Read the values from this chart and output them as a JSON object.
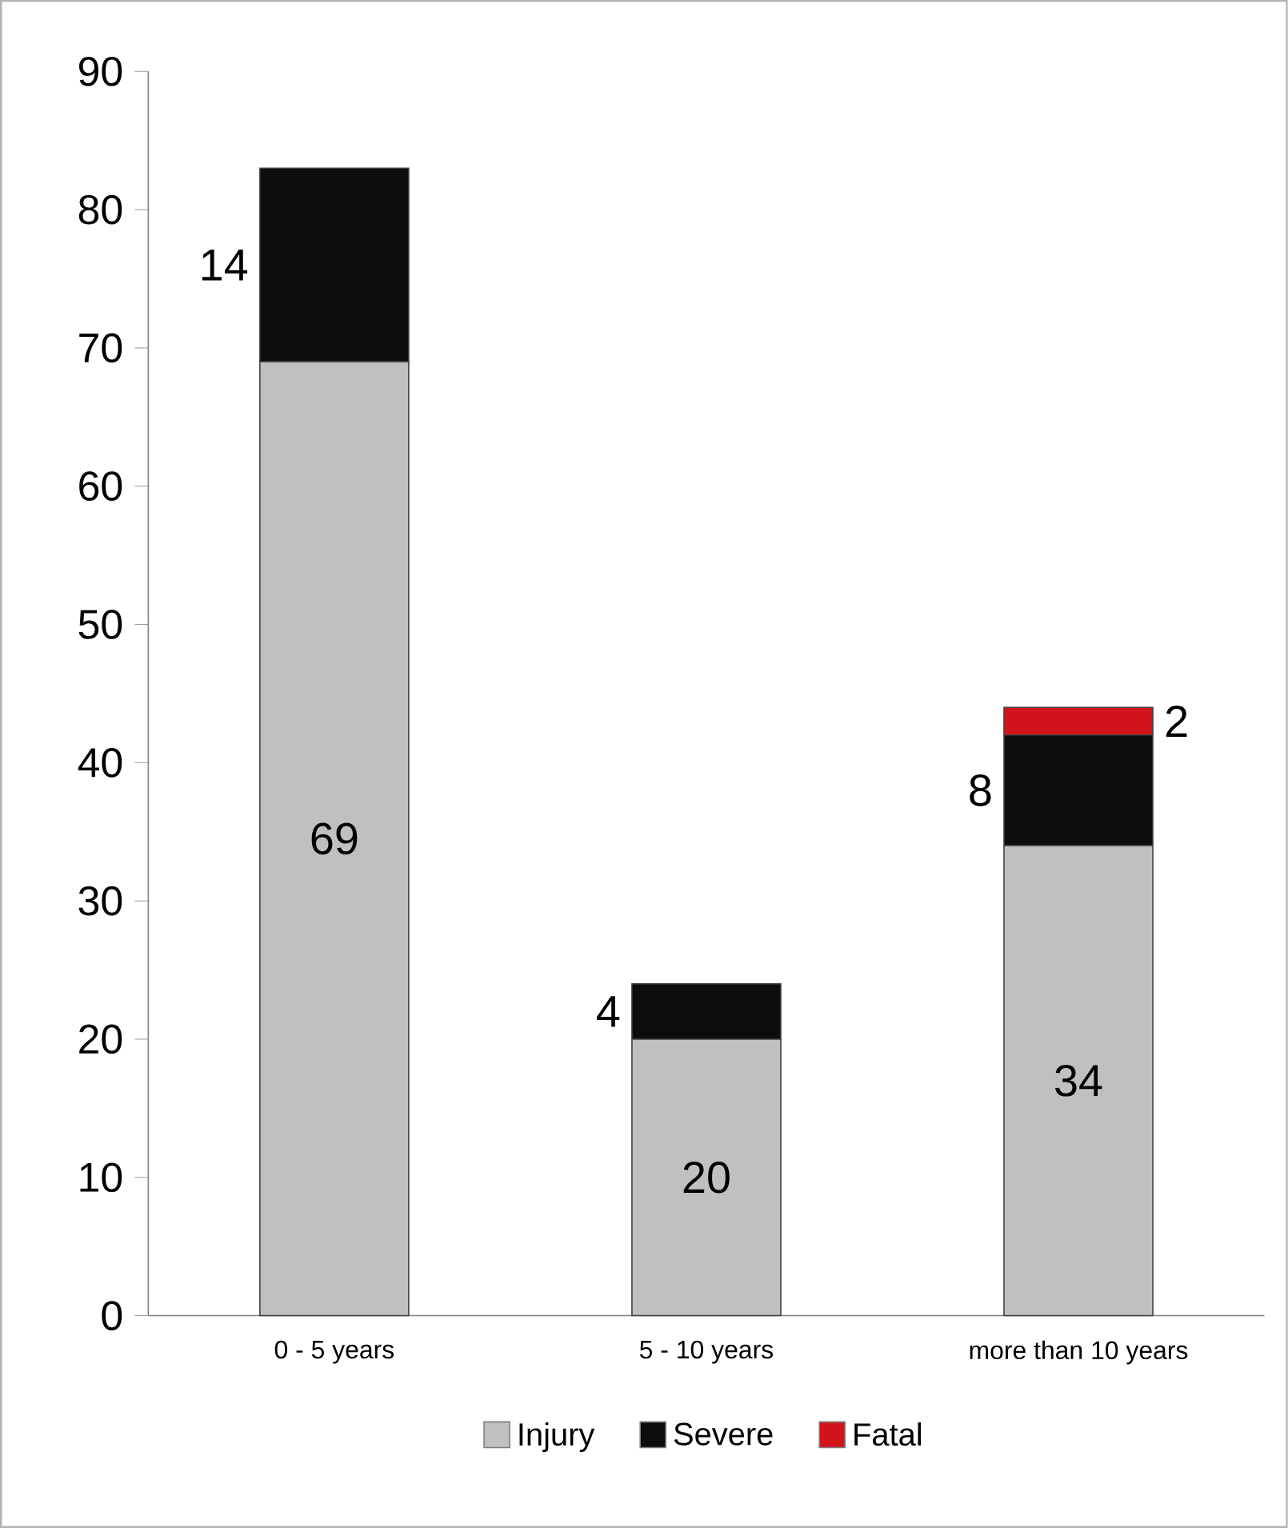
{
  "chart_data": {
    "type": "bar",
    "stacked": true,
    "categories": [
      "0 - 5 years",
      "5 - 10 years",
      "more than 10 years"
    ],
    "series": [
      {
        "name": "Injury",
        "color": "#c0c0c0",
        "values": [
          69,
          20,
          34
        ]
      },
      {
        "name": "Severe",
        "color": "#0d0d0d",
        "values": [
          14,
          4,
          8
        ]
      },
      {
        "name": "Fatal",
        "color": "#d0141a",
        "values": [
          null,
          null,
          2
        ]
      }
    ],
    "ylim": [
      0,
      90
    ],
    "yticks": [
      0,
      10,
      20,
      30,
      40,
      50,
      60,
      70,
      80,
      90
    ],
    "grid": false,
    "legend": "bottom",
    "data_labels": true
  }
}
